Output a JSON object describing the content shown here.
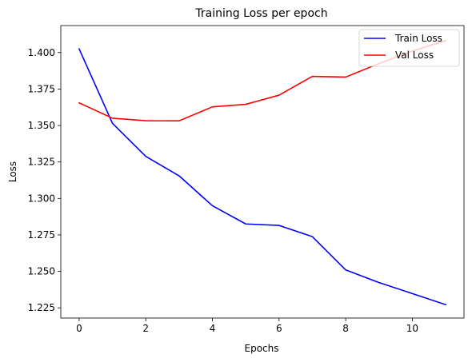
{
  "chart_data": {
    "type": "line",
    "title": "Training Loss per epoch",
    "xlabel": "Epochs",
    "ylabel": "Loss",
    "x": [
      0,
      1,
      2,
      3,
      4,
      5,
      6,
      7,
      8,
      9,
      10,
      11
    ],
    "xlim": [
      -0.55,
      11.55
    ],
    "ylim": [
      1.218,
      1.4185
    ],
    "xticks": [
      0,
      2,
      4,
      6,
      8,
      10
    ],
    "yticks": [
      1.225,
      1.25,
      1.275,
      1.3,
      1.325,
      1.35,
      1.375,
      1.4
    ],
    "ytick_labels": [
      "1.225",
      "1.250",
      "1.275",
      "1.300",
      "1.325",
      "1.350",
      "1.375",
      "1.400"
    ],
    "grid": false,
    "legend_position": "top-right",
    "series": [
      {
        "name": "Train Loss",
        "color": "#0000ff",
        "values": [
          1.4025,
          1.3515,
          1.3288,
          1.3155,
          1.295,
          1.2825,
          1.2815,
          1.2738,
          1.251,
          1.2423,
          1.2348,
          1.2272
        ]
      },
      {
        "name": "Val Loss",
        "color": "#ff0000",
        "values": [
          1.3655,
          1.355,
          1.3533,
          1.3532,
          1.3628,
          1.3645,
          1.3708,
          1.3837,
          1.3832,
          1.3925,
          1.401,
          1.4082
        ]
      }
    ]
  }
}
